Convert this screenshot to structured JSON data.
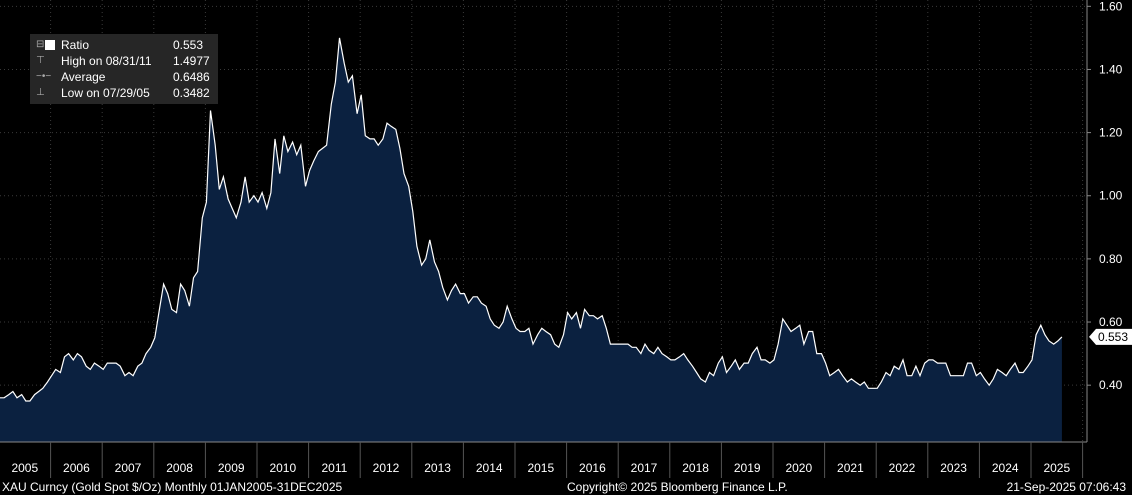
{
  "legend": {
    "series_label": "Ratio",
    "series_value": "0.553",
    "high_label": "High on 08/31/11",
    "high_value": "1.4977",
    "avg_label": "Average",
    "avg_value": "0.6486",
    "low_label": "Low on 07/29/05",
    "low_value": "0.3482"
  },
  "last_value_tag": "0.553",
  "footer": {
    "left": "XAU Curncy (Gold Spot  $/Oz)  Monthly 01JAN2005-31DEC2025",
    "center": "Copyright© 2025 Bloomberg Finance L.P.",
    "right": "21-Sep-2025 07:06:43"
  },
  "colors": {
    "background": "#000000",
    "area_fill": "#0b2140",
    "line": "#ffffff",
    "grid": "#3a3a3a"
  },
  "chart_data": {
    "type": "area",
    "ylim": [
      0.22,
      1.62
    ],
    "y_ticks": [
      "0.40",
      "0.60",
      "0.80",
      "1.00",
      "1.20",
      "1.40",
      "1.60"
    ],
    "y_tick_values": [
      0.4,
      0.6,
      0.8,
      1.0,
      1.2,
      1.4,
      1.6
    ],
    "x_tick_labels": [
      "2005",
      "2006",
      "2007",
      "2008",
      "2009",
      "2010",
      "2011",
      "2012",
      "2013",
      "2014",
      "2015",
      "2016",
      "2017",
      "2018",
      "2019",
      "2020",
      "2021",
      "2022",
      "2023",
      "2024",
      "2025"
    ],
    "x_start_year": 2005,
    "grid": true,
    "points": [
      [
        2005.0,
        0.36
      ],
      [
        2005.08,
        0.36
      ],
      [
        2005.17,
        0.37
      ],
      [
        2005.25,
        0.38
      ],
      [
        2005.33,
        0.36
      ],
      [
        2005.42,
        0.37
      ],
      [
        2005.5,
        0.35
      ],
      [
        2005.58,
        0.35
      ],
      [
        2005.67,
        0.37
      ],
      [
        2005.75,
        0.38
      ],
      [
        2005.83,
        0.39
      ],
      [
        2005.92,
        0.41
      ],
      [
        2006.0,
        0.43
      ],
      [
        2006.08,
        0.45
      ],
      [
        2006.17,
        0.44
      ],
      [
        2006.25,
        0.49
      ],
      [
        2006.33,
        0.5
      ],
      [
        2006.42,
        0.48
      ],
      [
        2006.5,
        0.5
      ],
      [
        2006.58,
        0.49
      ],
      [
        2006.67,
        0.46
      ],
      [
        2006.75,
        0.45
      ],
      [
        2006.83,
        0.47
      ],
      [
        2006.92,
        0.46
      ],
      [
        2007.0,
        0.45
      ],
      [
        2007.08,
        0.47
      ],
      [
        2007.17,
        0.47
      ],
      [
        2007.25,
        0.47
      ],
      [
        2007.33,
        0.46
      ],
      [
        2007.42,
        0.43
      ],
      [
        2007.5,
        0.44
      ],
      [
        2007.58,
        0.43
      ],
      [
        2007.67,
        0.46
      ],
      [
        2007.75,
        0.47
      ],
      [
        2007.83,
        0.5
      ],
      [
        2007.92,
        0.52
      ],
      [
        2008.0,
        0.55
      ],
      [
        2008.08,
        0.63
      ],
      [
        2008.17,
        0.72
      ],
      [
        2008.25,
        0.69
      ],
      [
        2008.33,
        0.64
      ],
      [
        2008.42,
        0.63
      ],
      [
        2008.5,
        0.72
      ],
      [
        2008.58,
        0.7
      ],
      [
        2008.67,
        0.65
      ],
      [
        2008.75,
        0.74
      ],
      [
        2008.83,
        0.76
      ],
      [
        2008.92,
        0.93
      ],
      [
        2009.0,
        0.98
      ],
      [
        2009.08,
        1.27
      ],
      [
        2009.17,
        1.16
      ],
      [
        2009.25,
        1.02
      ],
      [
        2009.33,
        1.06
      ],
      [
        2009.42,
        0.99
      ],
      [
        2009.5,
        0.96
      ],
      [
        2009.58,
        0.93
      ],
      [
        2009.67,
        0.98
      ],
      [
        2009.75,
        1.06
      ],
      [
        2009.83,
        0.98
      ],
      [
        2009.92,
        1.0
      ],
      [
        2010.0,
        0.98
      ],
      [
        2010.08,
        1.01
      ],
      [
        2010.17,
        0.96
      ],
      [
        2010.25,
        1.01
      ],
      [
        2010.33,
        1.18
      ],
      [
        2010.42,
        1.07
      ],
      [
        2010.5,
        1.19
      ],
      [
        2010.58,
        1.14
      ],
      [
        2010.67,
        1.17
      ],
      [
        2010.75,
        1.13
      ],
      [
        2010.83,
        1.16
      ],
      [
        2010.92,
        1.03
      ],
      [
        2011.0,
        1.08
      ],
      [
        2011.08,
        1.11
      ],
      [
        2011.17,
        1.14
      ],
      [
        2011.25,
        1.15
      ],
      [
        2011.33,
        1.16
      ],
      [
        2011.42,
        1.29
      ],
      [
        2011.5,
        1.36
      ],
      [
        2011.58,
        1.5
      ],
      [
        2011.67,
        1.42
      ],
      [
        2011.75,
        1.36
      ],
      [
        2011.83,
        1.38
      ],
      [
        2011.92,
        1.26
      ],
      [
        2012.0,
        1.32
      ],
      [
        2012.08,
        1.19
      ],
      [
        2012.17,
        1.18
      ],
      [
        2012.25,
        1.18
      ],
      [
        2012.33,
        1.16
      ],
      [
        2012.42,
        1.18
      ],
      [
        2012.5,
        1.23
      ],
      [
        2012.58,
        1.22
      ],
      [
        2012.67,
        1.21
      ],
      [
        2012.75,
        1.15
      ],
      [
        2012.83,
        1.07
      ],
      [
        2012.92,
        1.03
      ],
      [
        2013.0,
        0.95
      ],
      [
        2013.08,
        0.84
      ],
      [
        2013.17,
        0.78
      ],
      [
        2013.25,
        0.8
      ],
      [
        2013.33,
        0.86
      ],
      [
        2013.42,
        0.79
      ],
      [
        2013.5,
        0.76
      ],
      [
        2013.58,
        0.71
      ],
      [
        2013.67,
        0.67
      ],
      [
        2013.75,
        0.7
      ],
      [
        2013.83,
        0.72
      ],
      [
        2013.92,
        0.69
      ],
      [
        2014.0,
        0.69
      ],
      [
        2014.08,
        0.66
      ],
      [
        2014.17,
        0.68
      ],
      [
        2014.25,
        0.68
      ],
      [
        2014.33,
        0.66
      ],
      [
        2014.42,
        0.65
      ],
      [
        2014.5,
        0.61
      ],
      [
        2014.58,
        0.59
      ],
      [
        2014.67,
        0.58
      ],
      [
        2014.75,
        0.6
      ],
      [
        2014.83,
        0.65
      ],
      [
        2014.92,
        0.61
      ],
      [
        2015.0,
        0.58
      ],
      [
        2015.08,
        0.57
      ],
      [
        2015.17,
        0.57
      ],
      [
        2015.25,
        0.58
      ],
      [
        2015.33,
        0.53
      ],
      [
        2015.42,
        0.56
      ],
      [
        2015.5,
        0.58
      ],
      [
        2015.58,
        0.57
      ],
      [
        2015.67,
        0.56
      ],
      [
        2015.75,
        0.53
      ],
      [
        2015.83,
        0.52
      ],
      [
        2015.92,
        0.56
      ],
      [
        2016.0,
        0.63
      ],
      [
        2016.08,
        0.61
      ],
      [
        2016.17,
        0.63
      ],
      [
        2016.25,
        0.58
      ],
      [
        2016.33,
        0.64
      ],
      [
        2016.42,
        0.62
      ],
      [
        2016.5,
        0.62
      ],
      [
        2016.58,
        0.61
      ],
      [
        2016.67,
        0.62
      ],
      [
        2016.75,
        0.58
      ],
      [
        2016.83,
        0.53
      ],
      [
        2016.92,
        0.53
      ],
      [
        2017.0,
        0.53
      ],
      [
        2017.08,
        0.53
      ],
      [
        2017.17,
        0.53
      ],
      [
        2017.25,
        0.52
      ],
      [
        2017.33,
        0.52
      ],
      [
        2017.42,
        0.5
      ],
      [
        2017.5,
        0.53
      ],
      [
        2017.58,
        0.51
      ],
      [
        2017.67,
        0.5
      ],
      [
        2017.75,
        0.52
      ],
      [
        2017.83,
        0.5
      ],
      [
        2017.92,
        0.49
      ],
      [
        2018.0,
        0.48
      ],
      [
        2018.08,
        0.48
      ],
      [
        2018.17,
        0.49
      ],
      [
        2018.25,
        0.5
      ],
      [
        2018.33,
        0.48
      ],
      [
        2018.42,
        0.46
      ],
      [
        2018.5,
        0.44
      ],
      [
        2018.58,
        0.42
      ],
      [
        2018.67,
        0.41
      ],
      [
        2018.75,
        0.44
      ],
      [
        2018.83,
        0.43
      ],
      [
        2018.92,
        0.47
      ],
      [
        2019.0,
        0.49
      ],
      [
        2019.08,
        0.44
      ],
      [
        2019.17,
        0.46
      ],
      [
        2019.25,
        0.48
      ],
      [
        2019.33,
        0.45
      ],
      [
        2019.42,
        0.47
      ],
      [
        2019.5,
        0.47
      ],
      [
        2019.58,
        0.5
      ],
      [
        2019.67,
        0.52
      ],
      [
        2019.75,
        0.48
      ],
      [
        2019.83,
        0.48
      ],
      [
        2019.92,
        0.47
      ],
      [
        2020.0,
        0.48
      ],
      [
        2020.08,
        0.53
      ],
      [
        2020.17,
        0.61
      ],
      [
        2020.25,
        0.59
      ],
      [
        2020.33,
        0.57
      ],
      [
        2020.42,
        0.58
      ],
      [
        2020.5,
        0.59
      ],
      [
        2020.58,
        0.53
      ],
      [
        2020.67,
        0.57
      ],
      [
        2020.75,
        0.57
      ],
      [
        2020.83,
        0.5
      ],
      [
        2020.92,
        0.5
      ],
      [
        2021.0,
        0.47
      ],
      [
        2021.08,
        0.43
      ],
      [
        2021.17,
        0.44
      ],
      [
        2021.25,
        0.45
      ],
      [
        2021.33,
        0.43
      ],
      [
        2021.42,
        0.41
      ],
      [
        2021.5,
        0.42
      ],
      [
        2021.58,
        0.41
      ],
      [
        2021.67,
        0.4
      ],
      [
        2021.75,
        0.41
      ],
      [
        2021.83,
        0.39
      ],
      [
        2021.92,
        0.39
      ],
      [
        2022.0,
        0.39
      ],
      [
        2022.08,
        0.41
      ],
      [
        2022.17,
        0.44
      ],
      [
        2022.25,
        0.43
      ],
      [
        2022.33,
        0.46
      ],
      [
        2022.42,
        0.45
      ],
      [
        2022.5,
        0.48
      ],
      [
        2022.58,
        0.43
      ],
      [
        2022.67,
        0.43
      ],
      [
        2022.75,
        0.46
      ],
      [
        2022.83,
        0.43
      ],
      [
        2022.92,
        0.47
      ],
      [
        2023.0,
        0.48
      ],
      [
        2023.08,
        0.48
      ],
      [
        2023.17,
        0.47
      ],
      [
        2023.25,
        0.47
      ],
      [
        2023.33,
        0.47
      ],
      [
        2023.42,
        0.43
      ],
      [
        2023.5,
        0.43
      ],
      [
        2023.58,
        0.43
      ],
      [
        2023.67,
        0.43
      ],
      [
        2023.75,
        0.47
      ],
      [
        2023.83,
        0.47
      ],
      [
        2023.92,
        0.43
      ],
      [
        2024.0,
        0.44
      ],
      [
        2024.08,
        0.42
      ],
      [
        2024.17,
        0.4
      ],
      [
        2024.25,
        0.42
      ],
      [
        2024.33,
        0.45
      ],
      [
        2024.42,
        0.44
      ],
      [
        2024.5,
        0.43
      ],
      [
        2024.58,
        0.45
      ],
      [
        2024.67,
        0.47
      ],
      [
        2024.75,
        0.44
      ],
      [
        2024.83,
        0.44
      ],
      [
        2024.92,
        0.46
      ],
      [
        2025.0,
        0.48
      ],
      [
        2025.08,
        0.56
      ],
      [
        2025.17,
        0.59
      ],
      [
        2025.25,
        0.56
      ],
      [
        2025.33,
        0.54
      ],
      [
        2025.42,
        0.53
      ],
      [
        2025.5,
        0.54
      ],
      [
        2025.58,
        0.553
      ]
    ]
  }
}
